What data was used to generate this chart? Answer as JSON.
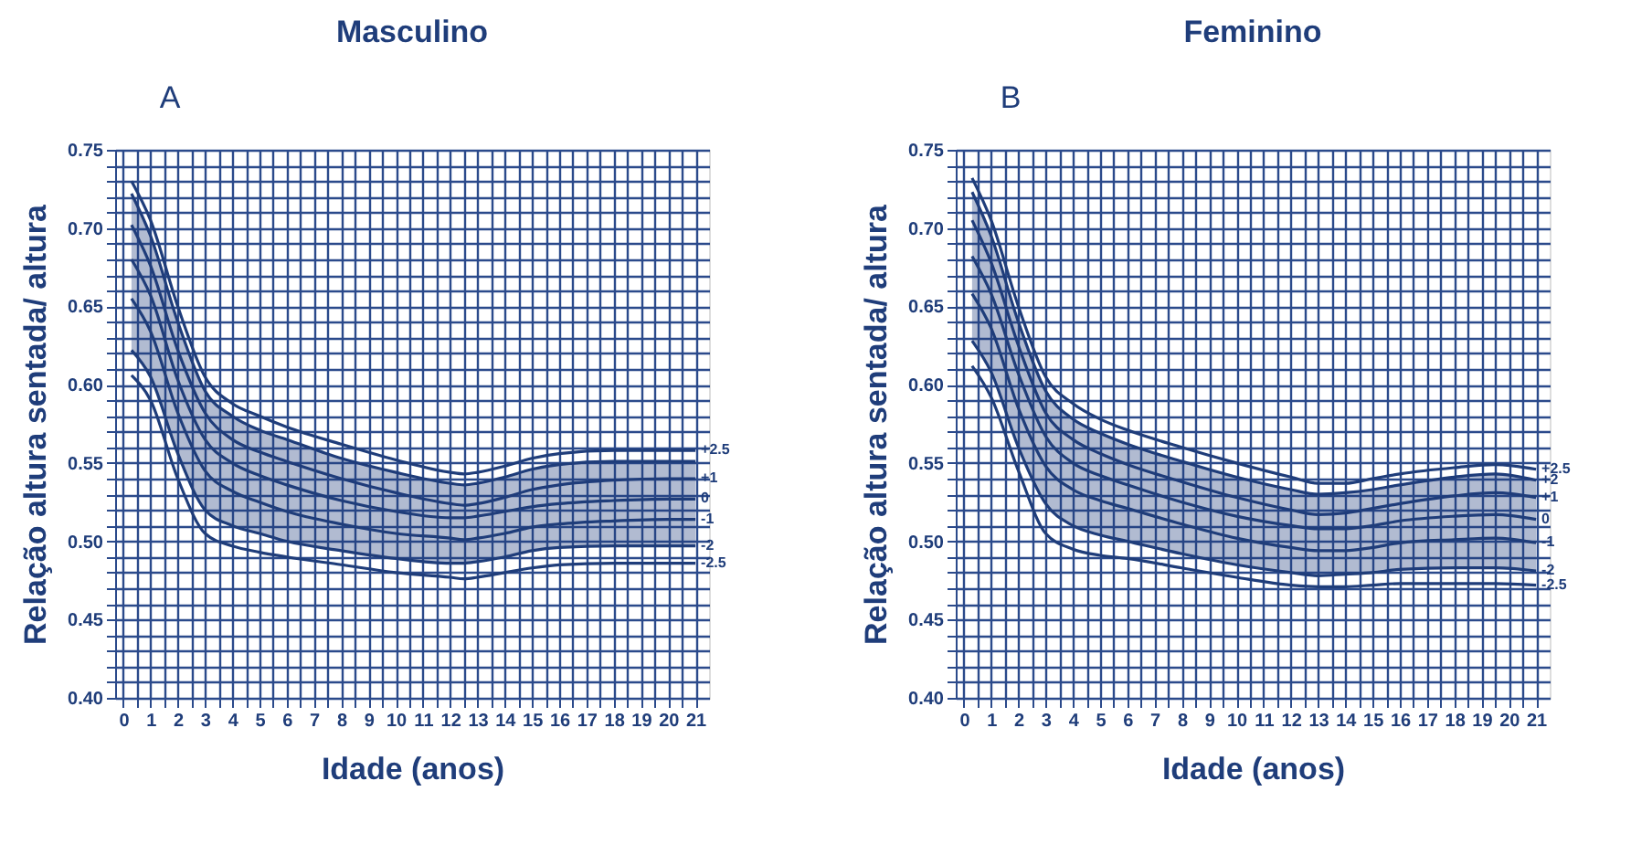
{
  "chart_data": [
    {
      "type": "line",
      "title": "Masculino",
      "annotations": [
        "A"
      ],
      "xlabel": "Idade (anos)",
      "ylabel": "Relação altura sentada/ altura",
      "legend": false,
      "marker": "none",
      "line_style": "solid",
      "grid": true,
      "x": [
        0.3,
        1,
        2,
        3,
        4,
        5,
        6,
        8,
        10,
        12,
        12.5,
        13,
        14,
        15,
        16,
        18,
        20,
        21
      ],
      "xlim": [
        -0.3,
        21.5
      ],
      "ylim": [
        0.4,
        0.75
      ],
      "xticks": [
        0,
        {
          "value": 0.5,
          "label": null
        },
        1,
        {
          "value": 1.5,
          "label": null
        },
        2,
        {
          "value": 2.5,
          "label": null
        },
        3,
        {
          "value": 3.5,
          "label": null
        },
        4,
        {
          "value": 4.5,
          "label": null
        },
        5,
        {
          "value": 5.5,
          "label": null
        },
        6,
        {
          "value": 6.5,
          "label": null
        },
        7,
        {
          "value": 7.5,
          "label": null
        },
        8,
        {
          "value": 8.5,
          "label": null
        },
        9,
        {
          "value": 9.5,
          "label": null
        },
        10,
        {
          "value": 10.5,
          "label": null
        },
        11,
        {
          "value": 11.5,
          "label": null
        },
        12,
        {
          "value": 12.5,
          "label": null
        },
        13,
        {
          "value": 13.5,
          "label": null
        },
        14,
        {
          "value": 14.5,
          "label": null
        },
        15,
        {
          "value": 15.5,
          "label": null
        },
        16,
        {
          "value": 16.5,
          "label": null
        },
        17,
        {
          "value": 17.5,
          "label": null
        },
        18,
        {
          "value": 18.5,
          "label": null
        },
        19,
        {
          "value": 19.5,
          "label": null
        },
        20,
        {
          "value": 20.5,
          "label": null
        },
        21
      ],
      "yticks": [
        {
          "value": 0.4,
          "label": "0.40"
        },
        {
          "value": 0.41,
          "label": null
        },
        {
          "value": 0.42,
          "label": null
        },
        {
          "value": 0.43,
          "label": null
        },
        {
          "value": 0.44,
          "label": null
        },
        0.45,
        {
          "value": 0.46,
          "label": null
        },
        {
          "value": 0.47,
          "label": null
        },
        {
          "value": 0.48,
          "label": null
        },
        {
          "value": 0.49,
          "label": null
        },
        {
          "value": 0.5,
          "label": "0.50"
        },
        {
          "value": 0.51,
          "label": null
        },
        {
          "value": 0.52,
          "label": null
        },
        {
          "value": 0.53,
          "label": null
        },
        {
          "value": 0.54,
          "label": null
        },
        0.55,
        {
          "value": 0.56,
          "label": null
        },
        {
          "value": 0.57,
          "label": null
        },
        {
          "value": 0.58,
          "label": null
        },
        {
          "value": 0.59,
          "label": null
        },
        {
          "value": 0.6,
          "label": "0.60"
        },
        {
          "value": 0.61,
          "label": null
        },
        {
          "value": 0.62,
          "label": null
        },
        {
          "value": 0.63,
          "label": null
        },
        {
          "value": 0.64,
          "label": null
        },
        0.65,
        {
          "value": 0.66,
          "label": null
        },
        {
          "value": 0.67,
          "label": null
        },
        {
          "value": 0.68,
          "label": null
        },
        {
          "value": 0.69,
          "label": null
        },
        {
          "value": 0.7,
          "label": "0.70"
        },
        {
          "value": 0.71,
          "label": null
        },
        {
          "value": 0.72,
          "label": null
        },
        {
          "value": 0.73,
          "label": null
        },
        {
          "value": 0.74,
          "label": null
        },
        0.75
      ],
      "series": [
        {
          "name": "+2.5",
          "color": "#1f3d7a",
          "values": [
            0.73,
            0.705,
            0.65,
            0.605,
            0.588,
            0.58,
            0.573,
            0.562,
            0.552,
            0.544,
            0.543,
            0.544,
            0.548,
            0.553,
            0.556,
            0.558,
            0.558,
            0.558
          ]
        },
        {
          "color": "#1f3d7a",
          "values": [
            0.722,
            0.695,
            0.64,
            0.596,
            0.58,
            0.571,
            0.565,
            0.553,
            0.544,
            0.537,
            0.536,
            0.537,
            0.541,
            0.546,
            0.549,
            0.551,
            0.551,
            0.551
          ]
        },
        {
          "name": "+1",
          "color": "#1f3d7a",
          "values": [
            0.702,
            0.676,
            0.622,
            0.582,
            0.565,
            0.557,
            0.551,
            0.54,
            0.531,
            0.524,
            0.523,
            0.524,
            0.528,
            0.533,
            0.536,
            0.539,
            0.54,
            0.54
          ]
        },
        {
          "name": "0",
          "color": "#1f3d7a",
          "values": [
            0.68,
            0.657,
            0.603,
            0.565,
            0.55,
            0.542,
            0.536,
            0.526,
            0.519,
            0.515,
            0.515,
            0.516,
            0.519,
            0.522,
            0.524,
            0.526,
            0.527,
            0.527
          ],
          "lower": [
            0.622,
            0.605,
            0.556,
            0.52,
            0.51,
            0.505,
            0.5,
            0.494,
            0.489,
            0.486,
            0.486,
            0.487,
            0.49,
            0.494,
            0.496,
            0.497,
            0.497,
            0.497
          ],
          "upper": [
            0.722,
            0.695,
            0.64,
            0.596,
            0.58,
            0.571,
            0.565,
            0.553,
            0.544,
            0.537,
            0.536,
            0.537,
            0.541,
            0.546,
            0.549,
            0.551,
            0.551,
            0.551
          ]
        },
        {
          "name": "-1",
          "color": "#1f3d7a",
          "values": [
            0.655,
            0.634,
            0.582,
            0.545,
            0.532,
            0.525,
            0.519,
            0.511,
            0.505,
            0.502,
            0.501,
            0.502,
            0.505,
            0.509,
            0.511,
            0.513,
            0.514,
            0.514
          ]
        },
        {
          "name": "-2",
          "color": "#1f3d7a",
          "values": [
            0.622,
            0.605,
            0.556,
            0.52,
            0.51,
            0.505,
            0.5,
            0.494,
            0.489,
            0.486,
            0.486,
            0.487,
            0.49,
            0.494,
            0.496,
            0.497,
            0.497,
            0.497
          ]
        },
        {
          "name": "-2.5",
          "color": "#1f3d7a",
          "values": [
            0.606,
            0.59,
            0.54,
            0.505,
            0.497,
            0.493,
            0.49,
            0.485,
            0.48,
            0.477,
            0.476,
            0.477,
            0.48,
            0.483,
            0.485,
            0.486,
            0.486,
            0.486
          ]
        }
      ]
    },
    {
      "type": "line",
      "title": "Feminino",
      "annotations": [
        "B"
      ],
      "xlabel": "Idade (anos)",
      "ylabel": "Relação altura sentada/ altura",
      "legend": false,
      "marker": "none",
      "line_style": "solid",
      "grid": true,
      "x": [
        0.3,
        1,
        2,
        3,
        4,
        5,
        6,
        8,
        10,
        12,
        13,
        14,
        15,
        16,
        18,
        19.5,
        21
      ],
      "xlim": [
        -0.3,
        21.5
      ],
      "ylim": [
        0.4,
        0.75
      ],
      "xticks": [
        0,
        {
          "value": 0.5,
          "label": null
        },
        1,
        {
          "value": 1.5,
          "label": null
        },
        2,
        {
          "value": 2.5,
          "label": null
        },
        3,
        {
          "value": 3.5,
          "label": null
        },
        4,
        {
          "value": 4.5,
          "label": null
        },
        5,
        {
          "value": 5.5,
          "label": null
        },
        6,
        {
          "value": 6.5,
          "label": null
        },
        7,
        {
          "value": 7.5,
          "label": null
        },
        8,
        {
          "value": 8.5,
          "label": null
        },
        9,
        {
          "value": 9.5,
          "label": null
        },
        10,
        {
          "value": 10.5,
          "label": null
        },
        11,
        {
          "value": 11.5,
          "label": null
        },
        12,
        {
          "value": 12.5,
          "label": null
        },
        13,
        {
          "value": 13.5,
          "label": null
        },
        14,
        {
          "value": 14.5,
          "label": null
        },
        15,
        {
          "value": 15.5,
          "label": null
        },
        16,
        {
          "value": 16.5,
          "label": null
        },
        17,
        {
          "value": 17.5,
          "label": null
        },
        18,
        {
          "value": 18.5,
          "label": null
        },
        19,
        {
          "value": 19.5,
          "label": null
        },
        20,
        {
          "value": 20.5,
          "label": null
        },
        21
      ],
      "yticks": [
        {
          "value": 0.4,
          "label": "0.40"
        },
        {
          "value": 0.41,
          "label": null
        },
        {
          "value": 0.42,
          "label": null
        },
        {
          "value": 0.43,
          "label": null
        },
        {
          "value": 0.44,
          "label": null
        },
        0.45,
        {
          "value": 0.46,
          "label": null
        },
        {
          "value": 0.47,
          "label": null
        },
        {
          "value": 0.48,
          "label": null
        },
        {
          "value": 0.49,
          "label": null
        },
        {
          "value": 0.5,
          "label": "0.50"
        },
        {
          "value": 0.51,
          "label": null
        },
        {
          "value": 0.52,
          "label": null
        },
        {
          "value": 0.53,
          "label": null
        },
        {
          "value": 0.54,
          "label": null
        },
        0.55,
        {
          "value": 0.56,
          "label": null
        },
        {
          "value": 0.57,
          "label": null
        },
        {
          "value": 0.58,
          "label": null
        },
        {
          "value": 0.59,
          "label": null
        },
        {
          "value": 0.6,
          "label": "0.60"
        },
        {
          "value": 0.61,
          "label": null
        },
        {
          "value": 0.62,
          "label": null
        },
        {
          "value": 0.63,
          "label": null
        },
        {
          "value": 0.64,
          "label": null
        },
        0.65,
        {
          "value": 0.66,
          "label": null
        },
        {
          "value": 0.67,
          "label": null
        },
        {
          "value": 0.68,
          "label": null
        },
        {
          "value": 0.69,
          "label": null
        },
        {
          "value": 0.7,
          "label": "0.70"
        },
        {
          "value": 0.71,
          "label": null
        },
        {
          "value": 0.72,
          "label": null
        },
        {
          "value": 0.73,
          "label": null
        },
        {
          "value": 0.74,
          "label": null
        },
        0.75
      ],
      "series": [
        {
          "name": "+2.5",
          "color": "#1f3d7a",
          "values": [
            0.732,
            0.705,
            0.65,
            0.605,
            0.588,
            0.578,
            0.571,
            0.56,
            0.55,
            0.541,
            0.537,
            0.537,
            0.54,
            0.543,
            0.547,
            0.549,
            0.546
          ]
        },
        {
          "name": "+2",
          "color": "#1f3d7a",
          "values": [
            0.723,
            0.695,
            0.64,
            0.596,
            0.578,
            0.569,
            0.562,
            0.551,
            0.541,
            0.533,
            0.53,
            0.531,
            0.533,
            0.536,
            0.541,
            0.543,
            0.539
          ]
        },
        {
          "name": "+1",
          "color": "#1f3d7a",
          "values": [
            0.705,
            0.678,
            0.625,
            0.582,
            0.565,
            0.556,
            0.549,
            0.538,
            0.528,
            0.52,
            0.517,
            0.518,
            0.521,
            0.524,
            0.529,
            0.531,
            0.528
          ]
        },
        {
          "name": "0",
          "color": "#1f3d7a",
          "values": [
            0.682,
            0.658,
            0.607,
            0.567,
            0.55,
            0.542,
            0.536,
            0.525,
            0.516,
            0.51,
            0.508,
            0.508,
            0.51,
            0.513,
            0.516,
            0.517,
            0.514
          ],
          "lower": [
            0.628,
            0.608,
            0.56,
            0.524,
            0.51,
            0.504,
            0.5,
            0.492,
            0.485,
            0.48,
            0.478,
            0.479,
            0.48,
            0.482,
            0.483,
            0.483,
            0.481
          ],
          "upper": [
            0.723,
            0.695,
            0.64,
            0.596,
            0.578,
            0.569,
            0.562,
            0.551,
            0.541,
            0.533,
            0.53,
            0.531,
            0.533,
            0.536,
            0.541,
            0.543,
            0.539
          ]
        },
        {
          "name": "-1",
          "color": "#1f3d7a",
          "values": [
            0.658,
            0.636,
            0.585,
            0.548,
            0.533,
            0.526,
            0.521,
            0.511,
            0.502,
            0.496,
            0.494,
            0.494,
            0.496,
            0.499,
            0.501,
            0.502,
            0.499
          ]
        },
        {
          "name": "-2",
          "color": "#1f3d7a",
          "values": [
            0.628,
            0.608,
            0.56,
            0.524,
            0.51,
            0.504,
            0.5,
            0.492,
            0.485,
            0.48,
            0.478,
            0.479,
            0.48,
            0.482,
            0.483,
            0.483,
            0.481
          ]
        },
        {
          "name": "-2.5",
          "color": "#1f3d7a",
          "values": [
            0.612,
            0.592,
            0.545,
            0.505,
            0.495,
            0.491,
            0.489,
            0.483,
            0.477,
            0.472,
            0.471,
            0.471,
            0.472,
            0.473,
            0.473,
            0.473,
            0.472
          ]
        }
      ]
    }
  ]
}
